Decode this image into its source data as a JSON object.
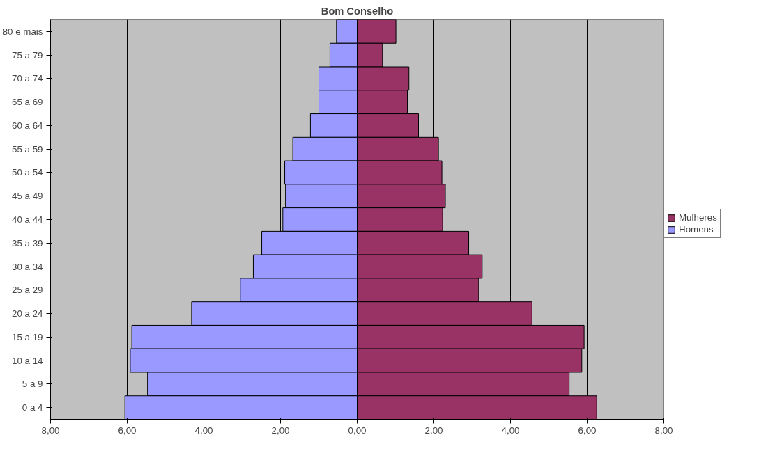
{
  "chart_data": {
    "type": "bar",
    "orientation": "horizontal",
    "title": "Bom Conselho",
    "categories": [
      "80 e mais",
      "75 a 79",
      "70 a 74",
      "65 a 69",
      "60 a 64",
      "55 a 59",
      "50 a 54",
      "45 a 49",
      "40 a 44",
      "35 a 39",
      "30 a 34",
      "25 a 29",
      "20 a 24",
      "15 a 19",
      "10 a 14",
      "5 a 9",
      "0 a 4"
    ],
    "series": [
      {
        "name": "Mulheres",
        "color": "#993366",
        "values": [
          1.01,
          0.66,
          1.35,
          1.31,
          1.6,
          2.12,
          2.21,
          2.3,
          2.23,
          2.91,
          3.26,
          3.17,
          4.56,
          5.92,
          5.86,
          5.53,
          6.25
        ]
      },
      {
        "name": "Homens",
        "color": "#9999ff",
        "values": [
          -0.54,
          -0.71,
          -1.0,
          -1.0,
          -1.22,
          -1.68,
          -1.89,
          -1.87,
          -1.94,
          -2.49,
          -2.71,
          -3.05,
          -4.32,
          -5.88,
          -5.92,
          -5.47,
          -6.06
        ]
      }
    ],
    "xlim": [
      -8,
      8
    ],
    "xticks": [
      {
        "value": -8,
        "label": "8,00"
      },
      {
        "value": -6,
        "label": "6,00"
      },
      {
        "value": -4,
        "label": "4,00"
      },
      {
        "value": -2,
        "label": "2,00"
      },
      {
        "value": 0,
        "label": "0,00"
      },
      {
        "value": 2,
        "label": "2,00"
      },
      {
        "value": 4,
        "label": "4,00"
      },
      {
        "value": 6,
        "label": "6,00"
      },
      {
        "value": 8,
        "label": "8,00"
      }
    ],
    "stacked": true,
    "grid": "x",
    "legend": "right"
  }
}
